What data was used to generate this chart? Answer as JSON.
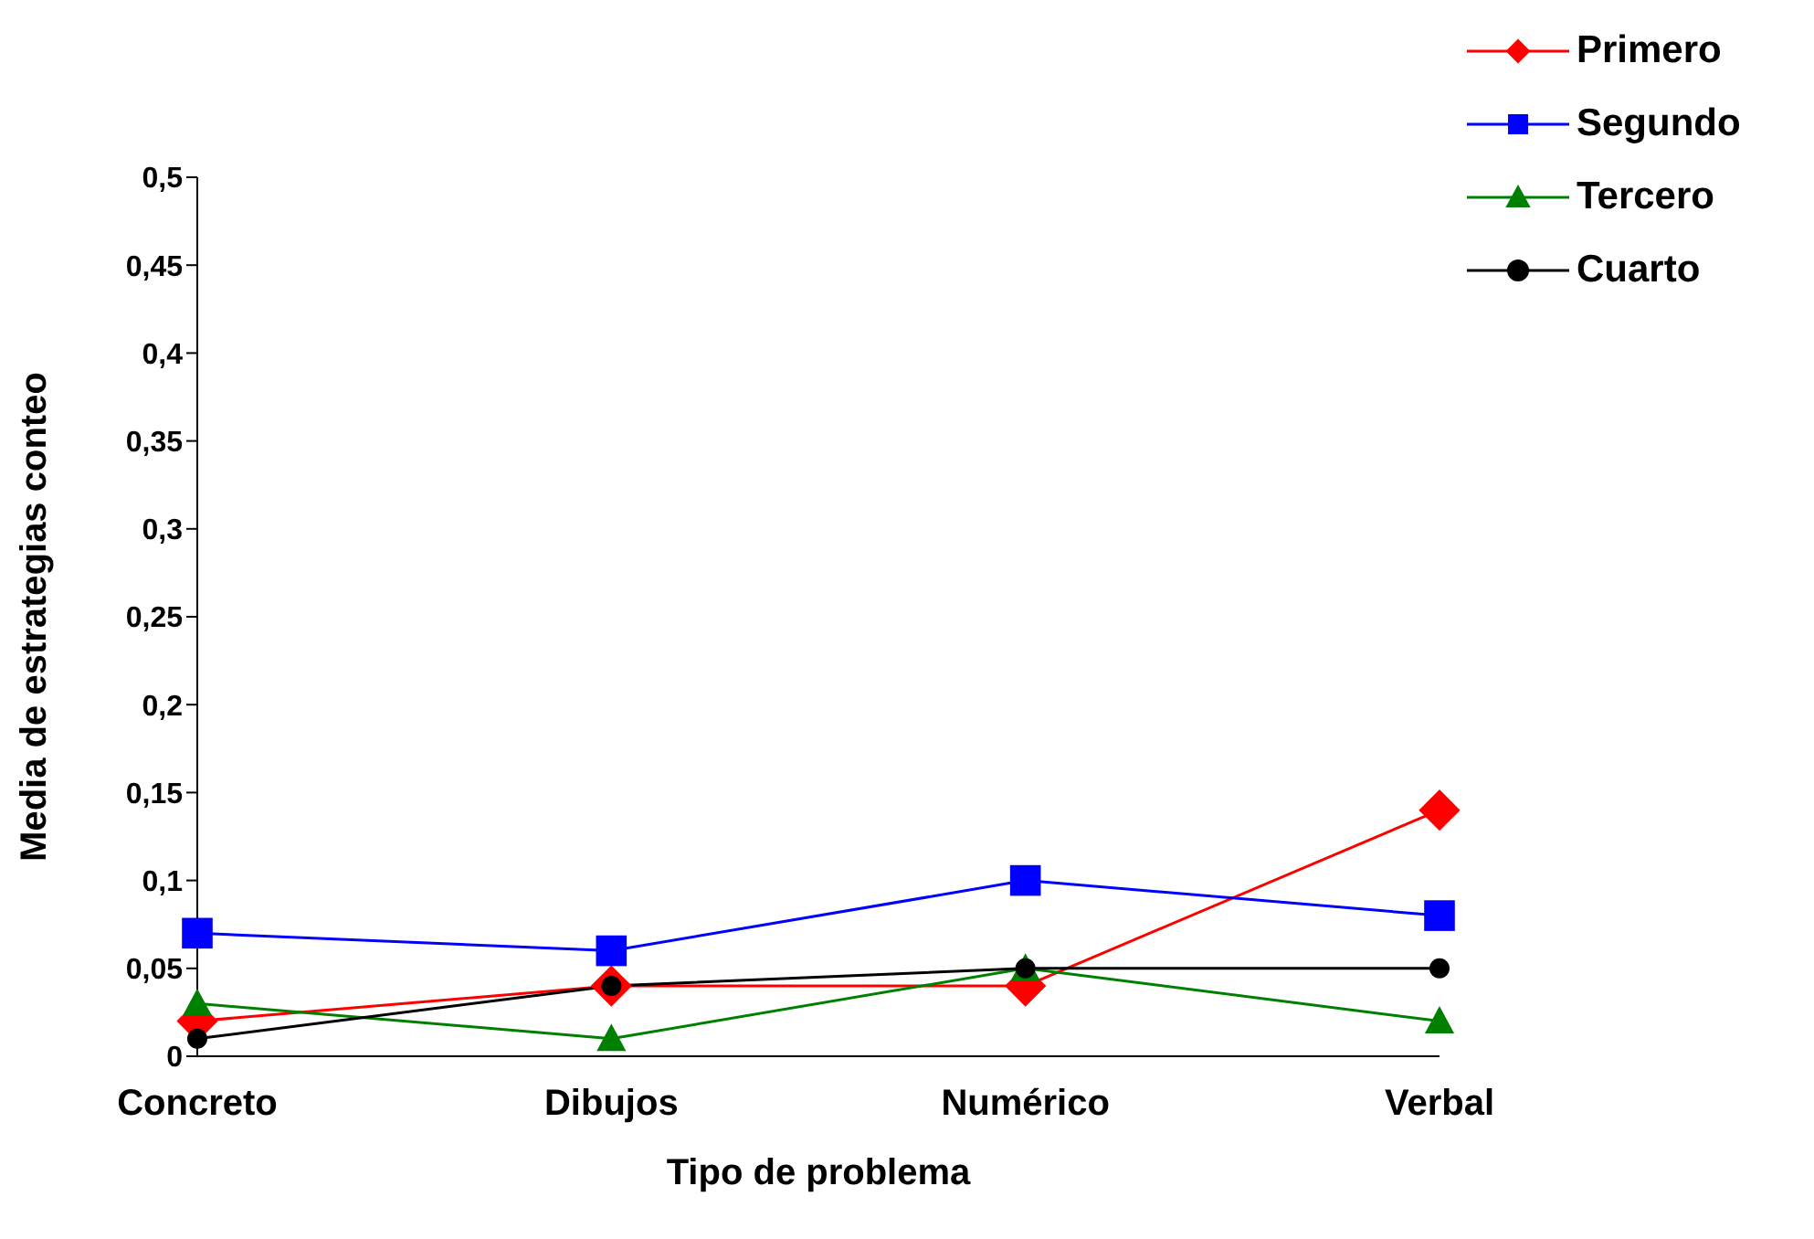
{
  "chart_data": {
    "type": "line",
    "xlabel": "Tipo de problema",
    "ylabel": "Media de estrategias conteo",
    "categories": [
      "Concreto",
      "Dibujos",
      "Numérico",
      "Verbal"
    ],
    "series": [
      {
        "name": "Primero",
        "color": "#ff0000",
        "marker": "diamond",
        "values": [
          0.02,
          0.04,
          0.04,
          0.14
        ]
      },
      {
        "name": "Segundo",
        "color": "#0000ff",
        "marker": "square",
        "values": [
          0.07,
          0.06,
          0.1,
          0.08
        ]
      },
      {
        "name": "Tercero",
        "color": "#008000",
        "marker": "triangle",
        "values": [
          0.03,
          0.01,
          0.05,
          0.02
        ]
      },
      {
        "name": "Cuarto",
        "color": "#000000",
        "marker": "circle",
        "values": [
          0.01,
          0.04,
          0.05,
          0.05
        ]
      }
    ],
    "ylim": [
      0,
      0.5
    ],
    "yticks": [
      {
        "value": 0,
        "label": "0"
      },
      {
        "value": 0.05,
        "label": "0,05"
      },
      {
        "value": 0.1,
        "label": "0,1"
      },
      {
        "value": 0.15,
        "label": "0,15"
      },
      {
        "value": 0.2,
        "label": "0,2"
      },
      {
        "value": 0.25,
        "label": "0,25"
      },
      {
        "value": 0.3,
        "label": "0,3"
      },
      {
        "value": 0.35,
        "label": "0,35"
      },
      {
        "value": 0.4,
        "label": "0,4"
      },
      {
        "value": 0.45,
        "label": "0,45"
      },
      {
        "value": 0.5,
        "label": "0,5"
      }
    ],
    "grid": false,
    "legend": "top right",
    "line_style": "solid"
  }
}
